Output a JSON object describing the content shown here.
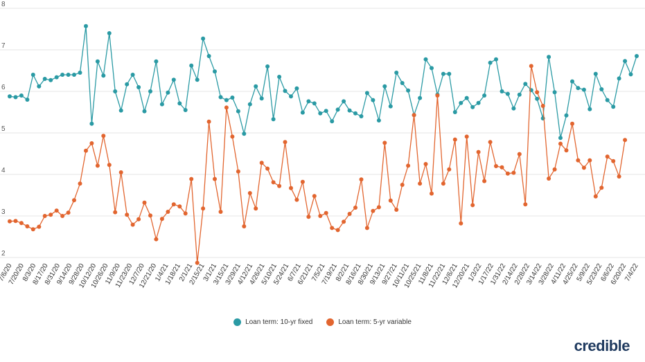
{
  "brand": "credible",
  "colors": {
    "fixed": "#2a9aa4",
    "variable": "#e2652f",
    "grid": "#e4e4e4",
    "text": "#333333"
  },
  "chart_data": {
    "type": "line",
    "ylim": [
      2,
      8
    ],
    "yticks": [
      2,
      3,
      4,
      5,
      6,
      7,
      8
    ],
    "grid": "horizontal",
    "legend_position": "bottom-center",
    "x_tick_labels": [
      "7/6/20",
      "7/20/20",
      "8/3/20",
      "8/17/20",
      "8/31/20",
      "9/14/20",
      "9/28/20",
      "10/12/20",
      "10/26/20",
      "11/9/20",
      "11/23/20",
      "12/7/20",
      "12/21/20",
      "1/4/21",
      "1/18/21",
      "2/1/21",
      "2/15/21",
      "3/1/21",
      "3/15/21",
      "3/29/21",
      "4/12/21",
      "4/26/21",
      "5/10/21",
      "5/24/21",
      "6/7/21",
      "6/21/21",
      "7/5/21",
      "7/19/21",
      "8/2/21",
      "8/16/21",
      "8/30/21",
      "9/13/21",
      "9/27/21",
      "10/11/21",
      "10/25/21",
      "11/8/21",
      "11/22/21",
      "12/6/21",
      "12/20/21",
      "1/3/22",
      "1/17/22",
      "1/31/22",
      "2/14/22",
      "2/28/22",
      "3/14/22",
      "3/28/22",
      "4/11/22",
      "4/25/22",
      "5/9/22",
      "5/23/22",
      "6/6/22",
      "6/20/22",
      "7/4/22"
    ],
    "series": [
      {
        "name": "Loan term: 10-yr fixed",
        "color": "#2a9aa4",
        "values": [
          5.88,
          5.86,
          5.9,
          5.8,
          6.4,
          6.12,
          6.3,
          6.27,
          6.34,
          6.4,
          6.4,
          6.4,
          6.45,
          7.57,
          5.22,
          6.72,
          6.38,
          7.4,
          6.0,
          5.54,
          6.17,
          6.4,
          6.1,
          5.52,
          6.0,
          6.72,
          5.69,
          5.97,
          6.28,
          5.71,
          5.55,
          6.62,
          6.28,
          7.27,
          6.85,
          6.48,
          5.86,
          5.79,
          5.85,
          5.52,
          4.98,
          5.69,
          6.12,
          5.83,
          6.6,
          5.33,
          6.35,
          6.01,
          5.88,
          6.07,
          5.49,
          5.76,
          5.71,
          5.47,
          5.53,
          5.28,
          5.56,
          5.76,
          5.54,
          5.47,
          5.4,
          5.96,
          5.79,
          5.3,
          6.12,
          5.64,
          6.45,
          6.2,
          6.02,
          5.43,
          5.84,
          6.77,
          6.56,
          5.92,
          6.42,
          6.42,
          5.5,
          5.72,
          5.84,
          5.62,
          5.72,
          5.9,
          6.69,
          6.77,
          6.0,
          5.94,
          5.59,
          5.92,
          6.18,
          6.03,
          5.82,
          5.35,
          6.83,
          5.98,
          4.88,
          5.42,
          6.24,
          6.08,
          6.04,
          5.57,
          6.42,
          6.05,
          5.79,
          5.63,
          6.31,
          6.73,
          6.41,
          6.85
        ]
      },
      {
        "name": "Loan term: 5-yr variable",
        "color": "#e2652f",
        "values": [
          2.87,
          2.88,
          2.83,
          2.75,
          2.68,
          2.74,
          3.0,
          3.03,
          3.13,
          3.0,
          3.08,
          3.38,
          3.78,
          4.57,
          4.75,
          4.21,
          4.93,
          4.23,
          3.09,
          4.05,
          3.03,
          2.79,
          2.92,
          3.32,
          3.01,
          2.44,
          2.93,
          3.1,
          3.28,
          3.23,
          3.06,
          3.89,
          1.87,
          3.18,
          5.27,
          3.89,
          3.1,
          5.61,
          4.91,
          4.07,
          2.75,
          3.55,
          3.18,
          4.28,
          4.14,
          3.81,
          3.72,
          4.78,
          3.67,
          3.39,
          3.82,
          2.98,
          3.48,
          3.0,
          3.07,
          2.71,
          2.66,
          2.86,
          3.05,
          3.2,
          3.88,
          2.71,
          3.12,
          3.21,
          4.76,
          3.37,
          3.15,
          3.75,
          4.21,
          5.43,
          3.78,
          4.25,
          3.54,
          5.9,
          3.78,
          4.12,
          4.84,
          2.82,
          4.91,
          3.26,
          4.54,
          3.84,
          4.78,
          4.2,
          4.17,
          4.02,
          4.04,
          4.49,
          3.28,
          6.61,
          5.98,
          5.65,
          3.9,
          4.12,
          4.74,
          4.58,
          5.22,
          4.34,
          4.16,
          4.34,
          3.47,
          3.68,
          4.43,
          4.32,
          3.95,
          4.83
        ]
      }
    ]
  }
}
